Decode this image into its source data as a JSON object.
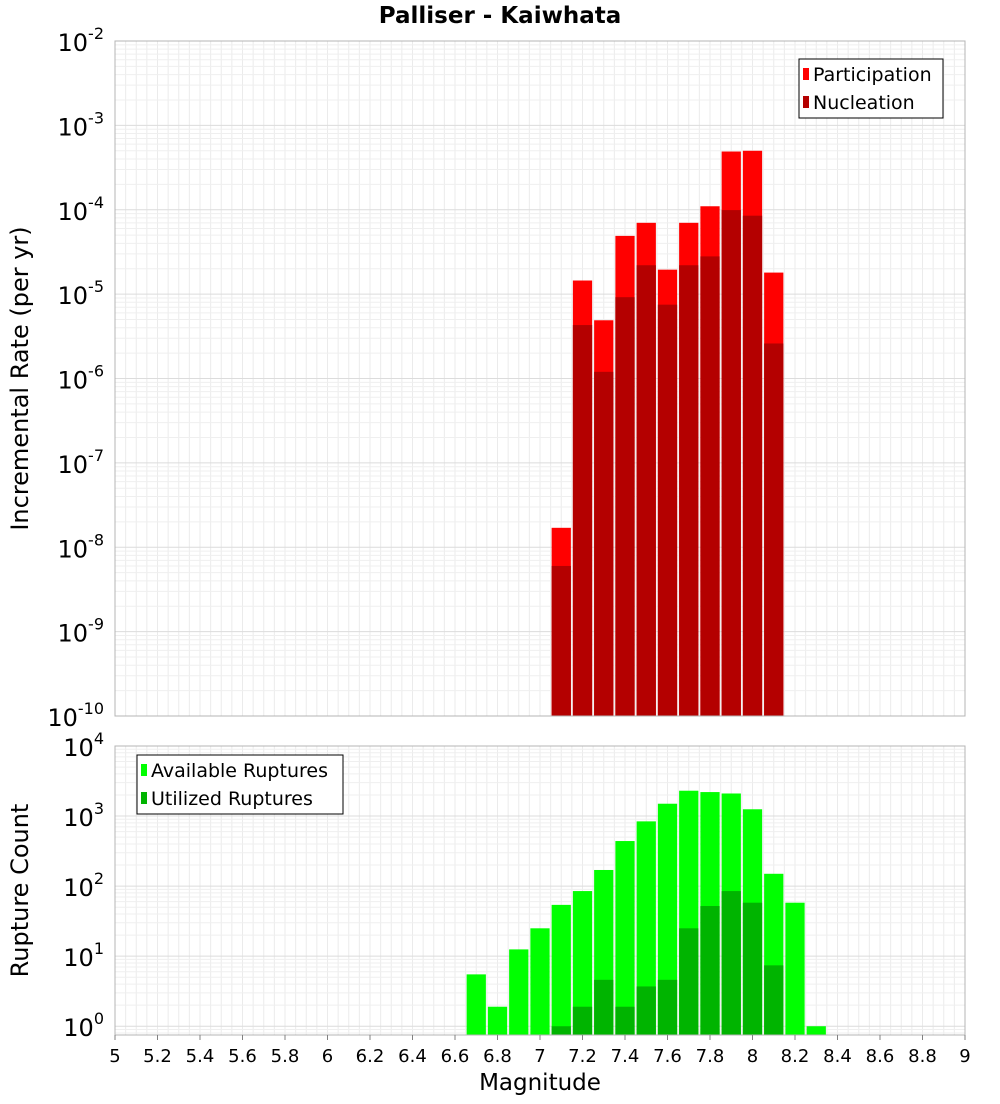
{
  "title": "Palliser - Kaiwhata",
  "chart_data": [
    {
      "type": "bar",
      "ylabel": "Incremental Rate (per yr)",
      "y_scale": "log",
      "ylim": [
        1e-10,
        0.01
      ],
      "ytick_exponents": [
        "-10",
        "-9",
        "-8",
        "-7",
        "-6",
        "-5",
        "-4",
        "-3",
        "-2"
      ],
      "ytick_base": "10",
      "grid": true,
      "legend_position": "top-right",
      "bin_width": 0.1,
      "x": [
        7.1,
        7.2,
        7.3,
        7.4,
        7.5,
        7.6,
        7.7,
        7.8,
        7.9,
        8.0,
        8.1
      ],
      "series": [
        {
          "name": "Participation",
          "color": "#ff0000",
          "values": [
            1.7e-08,
            1.45e-05,
            4.9e-06,
            4.9e-05,
            7e-05,
            1.95e-05,
            7e-05,
            0.00011,
            0.00049,
            0.0005,
            1.8e-05
          ]
        },
        {
          "name": "Nucleation",
          "color": "#b40000",
          "values": [
            6e-09,
            4.3e-06,
            1.2e-06,
            9.2e-06,
            2.2e-05,
            7.5e-06,
            2.2e-05,
            2.8e-05,
            9.9e-05,
            8.5e-05,
            2.6e-06
          ]
        }
      ]
    },
    {
      "type": "bar",
      "xlabel": "Magnitude",
      "ylabel": "Rupture Count",
      "y_scale": "log",
      "ylim": [
        0.75,
        10000
      ],
      "ytick_exponents": [
        "0",
        "1",
        "2",
        "3",
        "4"
      ],
      "ytick_base": "10",
      "xlim": [
        5,
        9
      ],
      "xtick_labels": [
        "5",
        "5.2",
        "5.4",
        "5.6",
        "5.8",
        "6",
        "6.2",
        "6.4",
        "6.6",
        "6.8",
        "7",
        "7.2",
        "7.4",
        "7.6",
        "7.8",
        "8",
        "8.2",
        "8.4",
        "8.6",
        "8.8",
        "9"
      ],
      "grid": true,
      "legend_position": "top-left",
      "bin_width": 0.1,
      "x": [
        6.7,
        6.8,
        6.9,
        7.0,
        7.1,
        7.2,
        7.3,
        7.4,
        7.5,
        7.6,
        7.7,
        7.8,
        7.9,
        8.0,
        8.1,
        8.2,
        8.3
      ],
      "series": [
        {
          "name": "Available Ruptures",
          "color": "#00ff00",
          "values": [
            5.5,
            1.9,
            12.5,
            25,
            54,
            85,
            170,
            440,
            840,
            1500,
            2300,
            2200,
            2100,
            1250,
            150,
            58,
            1
          ]
        },
        {
          "name": "Utilized Ruptures",
          "color": "#00b400",
          "values": [
            0,
            0,
            0,
            0,
            1,
            1.9,
            4.6,
            1.9,
            3.7,
            4.6,
            25,
            52,
            85,
            58,
            7.4,
            0,
            0
          ]
        }
      ]
    }
  ]
}
